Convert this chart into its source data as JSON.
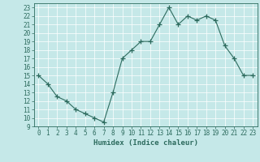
{
  "x": [
    0,
    1,
    2,
    3,
    4,
    5,
    6,
    7,
    8,
    9,
    10,
    11,
    12,
    13,
    14,
    15,
    16,
    17,
    18,
    19,
    20,
    21,
    22,
    23
  ],
  "y": [
    15,
    14,
    12.5,
    12,
    11,
    10.5,
    10,
    9.5,
    13,
    17,
    18,
    19,
    19,
    21,
    23,
    21,
    22,
    21.5,
    22,
    21.5,
    18.5,
    17,
    15,
    15
  ],
  "line_color": "#2d6b5e",
  "marker": "+",
  "marker_size": 4,
  "bg_color": "#c5e8e8",
  "grid_color": "#ffffff",
  "grid_minor_color": "#daf0f0",
  "xlabel": "Humidex (Indice chaleur)",
  "ylabel": "",
  "xlim": [
    -0.5,
    23.5
  ],
  "ylim": [
    9,
    23.5
  ],
  "yticks": [
    9,
    10,
    11,
    12,
    13,
    14,
    15,
    16,
    17,
    18,
    19,
    20,
    21,
    22,
    23
  ],
  "xticks": [
    0,
    1,
    2,
    3,
    4,
    5,
    6,
    7,
    8,
    9,
    10,
    11,
    12,
    13,
    14,
    15,
    16,
    17,
    18,
    19,
    20,
    21,
    22,
    23
  ],
  "tick_color": "#2d6b5e",
  "label_fontsize": 6.5,
  "tick_fontsize": 5.5
}
